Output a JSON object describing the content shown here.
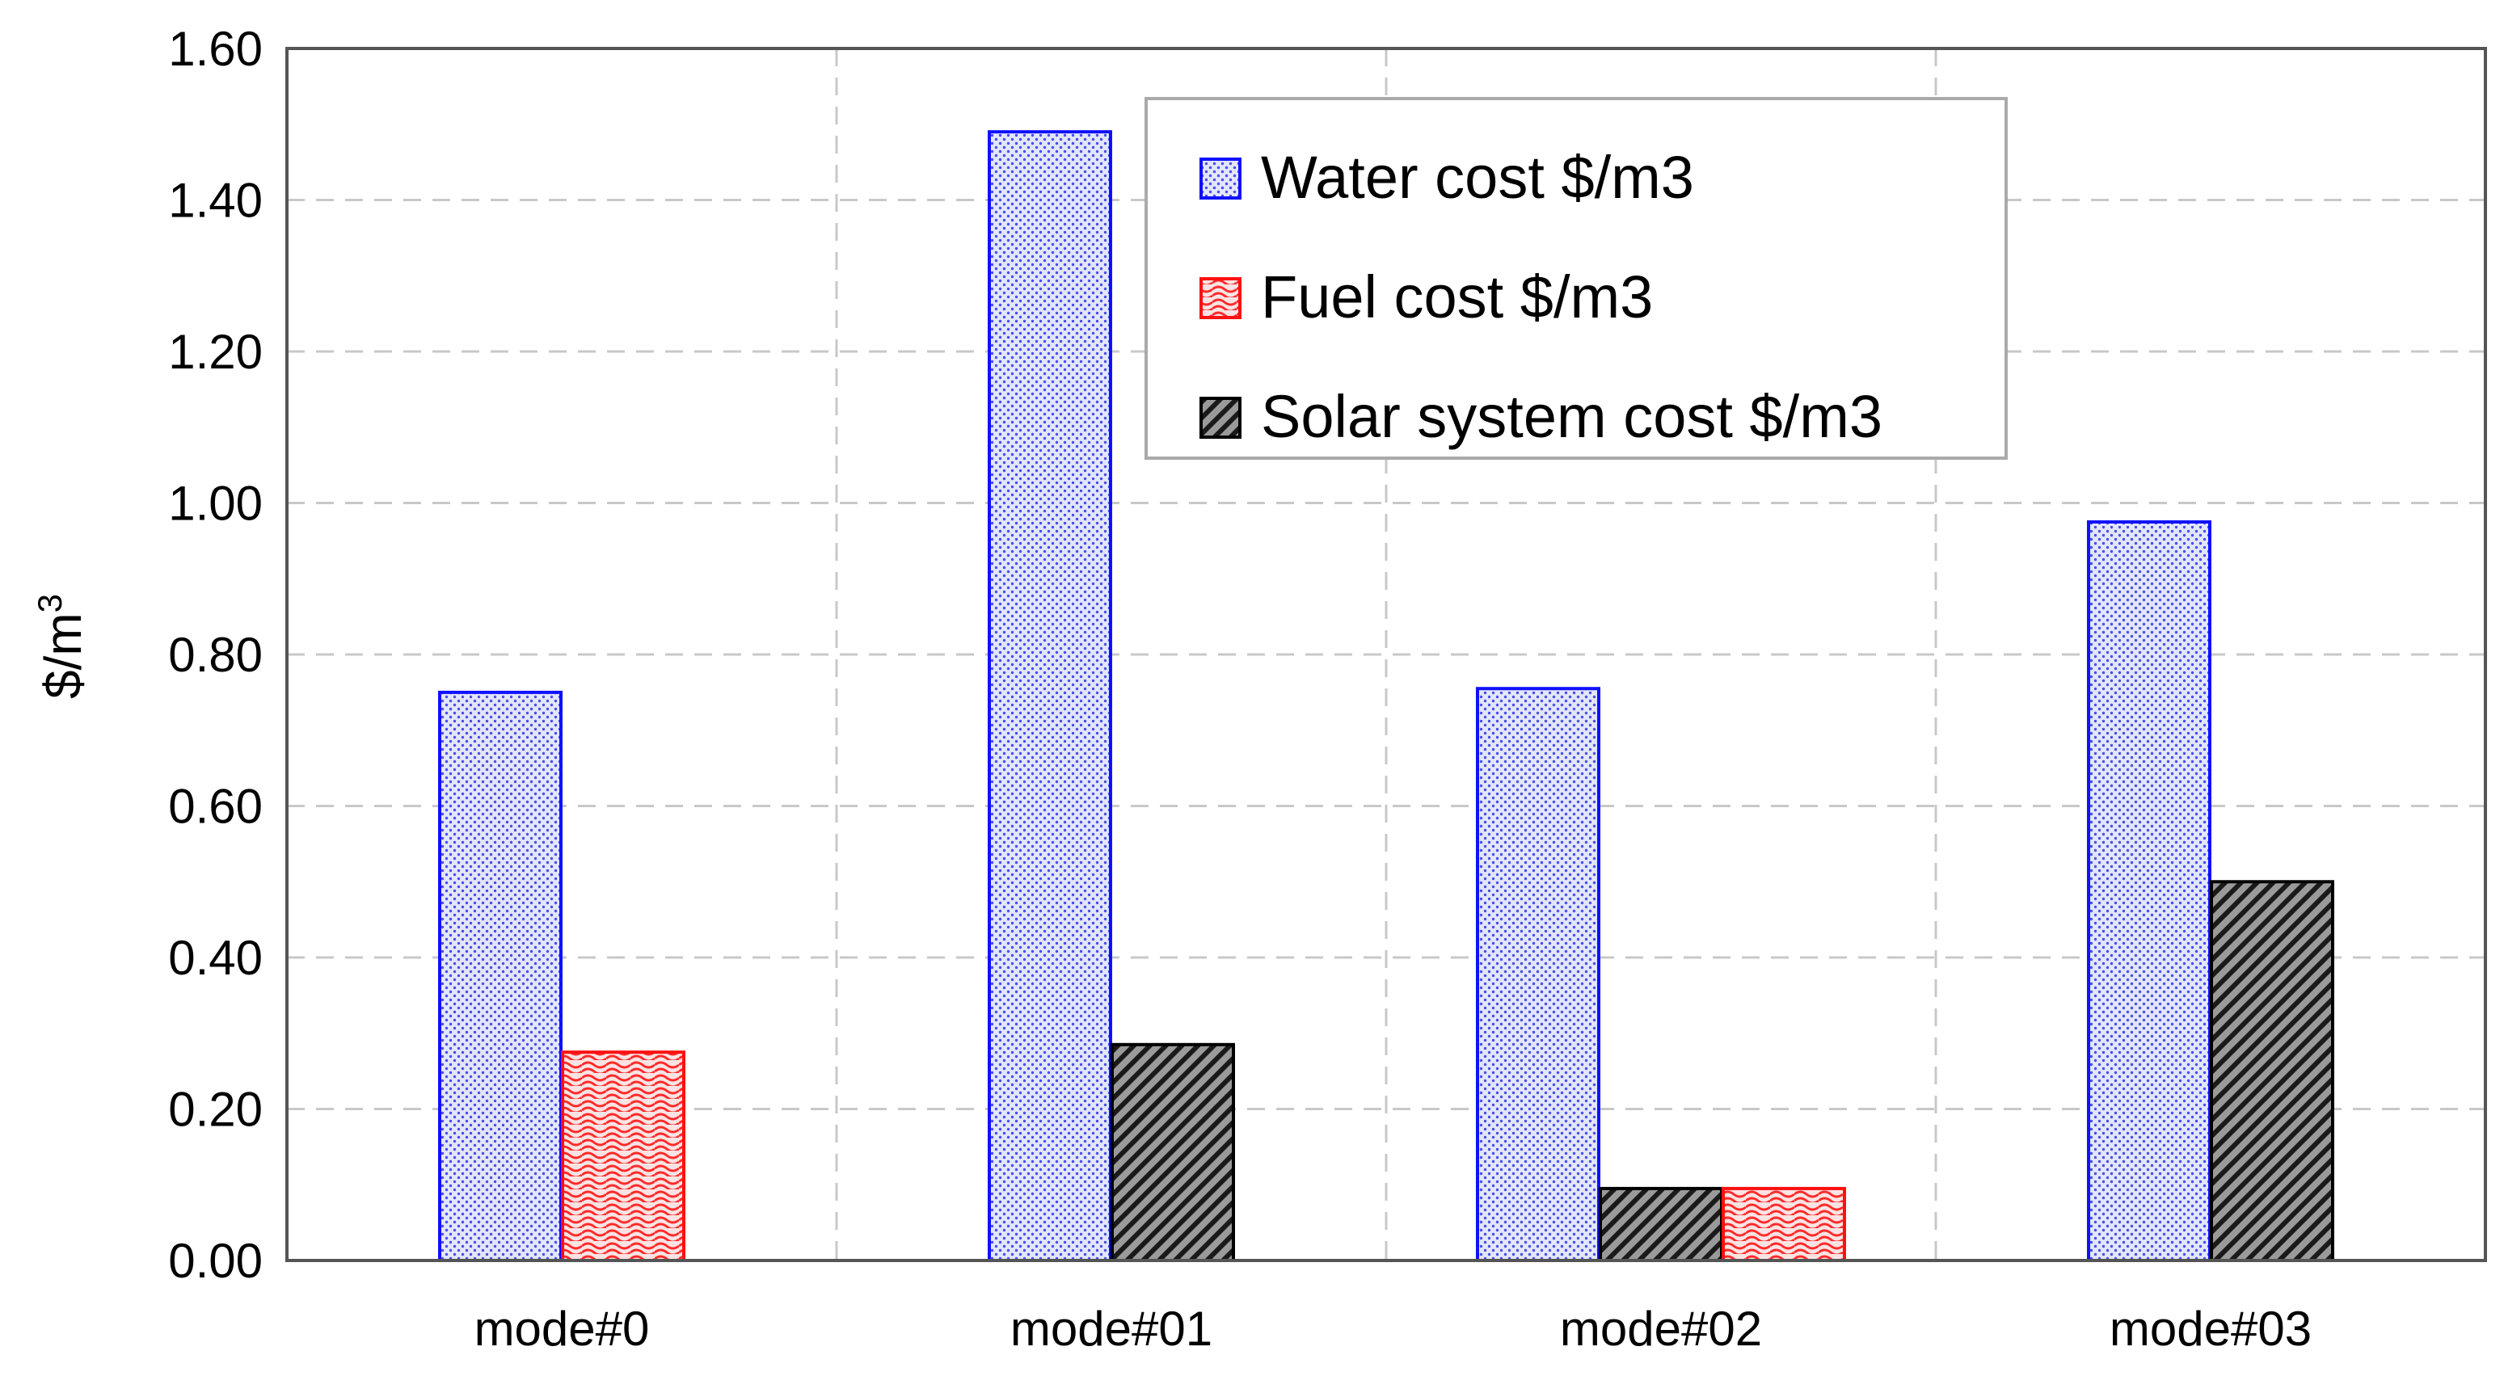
{
  "chart_data": {
    "type": "bar",
    "title": "",
    "xlabel": "",
    "ylabel": "$/m",
    "ylabel_superscript": "3",
    "ylim": [
      0,
      1.6
    ],
    "yticks": [
      0,
      0.2,
      0.4,
      0.6,
      0.8,
      1.0,
      1.2,
      1.4,
      1.6
    ],
    "ytick_labels": [
      "0.00",
      "0.20",
      "0.40",
      "0.60",
      "0.80",
      "1.00",
      "1.20",
      "1.40",
      "1.60"
    ],
    "grid": true,
    "legend_position": "top-center",
    "categories": [
      "mode#0",
      "mode#01",
      "mode#02",
      "mode#03"
    ],
    "series": [
      {
        "name": "Water cost $/m3",
        "values": [
          0.75,
          1.49,
          0.755,
          0.975
        ],
        "color": "#1f1fff",
        "pattern": "dots"
      },
      {
        "name": "Fuel cost $/m3",
        "values": [
          0.275,
          null,
          0.095,
          null
        ],
        "color": "#ff2020",
        "pattern": "waves"
      },
      {
        "name": "Solar system cost $/m3",
        "values": [
          null,
          0.285,
          0.095,
          0.5
        ],
        "color": "#000000",
        "pattern": "hatch"
      }
    ],
    "bar_order": [
      [
        "Water cost $/m3",
        "Fuel cost $/m3"
      ],
      [
        "Water cost $/m3",
        "Solar system cost $/m3"
      ],
      [
        "Water cost $/m3",
        "Solar system cost $/m3",
        "Fuel cost $/m3"
      ],
      [
        "Water cost $/m3",
        "Solar system cost $/m3"
      ]
    ]
  }
}
